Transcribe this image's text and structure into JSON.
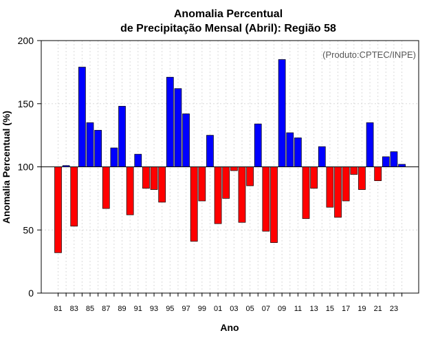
{
  "chart_data": {
    "type": "bar",
    "title_line1": "Anomalia Percentual",
    "title_line2": "de Precipitação Mensal (Abril): Região 58",
    "credit": "(Produto:CPTEC/INPE)",
    "xlabel": "Ano",
    "ylabel": "Anomalia Percentual (%)",
    "ylim": [
      0,
      200
    ],
    "yticks": [
      0,
      50,
      100,
      150,
      200
    ],
    "baseline": 100,
    "grid": true,
    "colors": {
      "above": "#0000ff",
      "below": "#ff0000",
      "grid": "#d9d9d9"
    },
    "tick_labels": [
      "81",
      "83",
      "85",
      "87",
      "89",
      "91",
      "93",
      "95",
      "97",
      "99",
      "01",
      "03",
      "05",
      "07",
      "09",
      "11",
      "13",
      "15",
      "17",
      "19",
      "21",
      "23"
    ],
    "categories": [
      "1981",
      "1982",
      "1983",
      "1984",
      "1985",
      "1986",
      "1987",
      "1988",
      "1989",
      "1990",
      "1991",
      "1992",
      "1993",
      "1994",
      "1995",
      "1996",
      "1997",
      "1998",
      "1999",
      "2000",
      "2001",
      "2002",
      "2003",
      "2004",
      "2005",
      "2006",
      "2007",
      "2008",
      "2009",
      "2010",
      "2011",
      "2012",
      "2013",
      "2014",
      "2015",
      "2016",
      "2017",
      "2018",
      "2019",
      "2020",
      "2021",
      "2022",
      "2023",
      "2024"
    ],
    "values": [
      32,
      101,
      53,
      179,
      135,
      129,
      67,
      115,
      148,
      62,
      110,
      83,
      82,
      72,
      171,
      162,
      142,
      41,
      73,
      125,
      55,
      75,
      97,
      56,
      85,
      134,
      49,
      40,
      185,
      127,
      123,
      59,
      83,
      116,
      68,
      60,
      73,
      94,
      82,
      135,
      89,
      108,
      112,
      102
    ]
  }
}
